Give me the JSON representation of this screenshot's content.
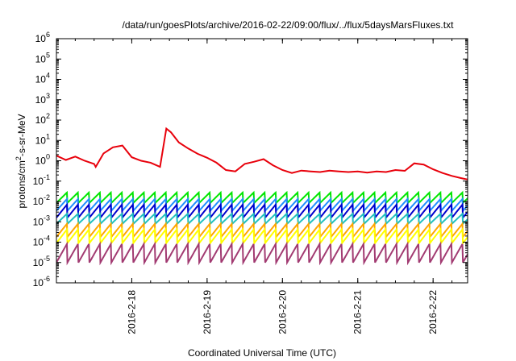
{
  "chart_data": {
    "type": "line",
    "title": "/data/run/goesPlots/archive/2016-02-22/09:00/flux/../flux/5daysMarsFluxes.txt",
    "xlabel": "Coordinated Universal Time (UTC)",
    "ylabel_parts": {
      "pre": "protons/cm",
      "sup": "2",
      "post": "-s-sr-MeV"
    },
    "yscale": "log",
    "ylim_exp": [
      -6,
      6
    ],
    "y_tick_exponents": [
      -6,
      -5,
      -4,
      -3,
      -2,
      -1,
      0,
      1,
      2,
      3,
      4,
      5,
      6
    ],
    "y_tick_base": "10",
    "xlim": [
      "2016-02-17T00:00",
      "2016-02-22T11:00"
    ],
    "x_ticks": [
      {
        "date": "2016-02-18T00:00",
        "label": "2016-2-18"
      },
      {
        "date": "2016-02-19T00:00",
        "label": "2016-2-19"
      },
      {
        "date": "2016-02-20T00:00",
        "label": "2016-2-20"
      },
      {
        "date": "2016-02-21T00:00",
        "label": "2016-2-21"
      },
      {
        "date": "2016-02-22T00:00",
        "label": "2016-2-22"
      }
    ],
    "grid": false,
    "legend": "none",
    "series": [
      {
        "color": "#e8000b",
        "x": [
          "2016-02-17T00:00",
          "2016-02-17T03:00",
          "2016-02-17T06:00",
          "2016-02-17T09:00",
          "2016-02-17T12:00",
          "2016-02-17T12:30",
          "2016-02-17T15:00",
          "2016-02-17T18:00",
          "2016-02-17T21:00",
          "2016-02-18T00:00",
          "2016-02-18T03:00",
          "2016-02-18T06:00",
          "2016-02-18T09:00",
          "2016-02-18T11:00",
          "2016-02-18T12:30",
          "2016-02-18T15:00",
          "2016-02-18T18:00",
          "2016-02-18T21:00",
          "2016-02-19T00:00",
          "2016-02-19T03:00",
          "2016-02-19T06:00",
          "2016-02-19T09:00",
          "2016-02-19T12:00",
          "2016-02-19T15:00",
          "2016-02-19T18:00",
          "2016-02-19T21:00",
          "2016-02-20T00:00",
          "2016-02-20T03:00",
          "2016-02-20T06:00",
          "2016-02-20T09:00",
          "2016-02-20T12:00",
          "2016-02-20T15:00",
          "2016-02-20T18:00",
          "2016-02-20T21:00",
          "2016-02-21T00:00",
          "2016-02-21T03:00",
          "2016-02-21T06:00",
          "2016-02-21T09:00",
          "2016-02-21T12:00",
          "2016-02-21T15:00",
          "2016-02-21T18:00",
          "2016-02-21T21:00",
          "2016-02-22T00:00",
          "2016-02-22T03:00",
          "2016-02-22T06:00",
          "2016-02-22T09:00",
          "2016-02-22T11:00"
        ],
        "y": [
          1.8,
          1.1,
          1.6,
          1.0,
          0.7,
          0.5,
          2.3,
          4.6,
          5.6,
          1.5,
          1.0,
          0.8,
          0.5,
          38,
          25,
          8,
          4,
          2.2,
          1.4,
          0.8,
          0.35,
          0.3,
          0.7,
          0.9,
          1.2,
          0.6,
          0.35,
          0.25,
          0.33,
          0.3,
          0.28,
          0.33,
          0.3,
          0.28,
          0.3,
          0.26,
          0.3,
          0.28,
          0.35,
          0.32,
          0.75,
          0.65,
          0.38,
          0.25,
          0.18,
          0.14,
          0.12
        ]
      },
      {
        "color": "#00e600",
        "y_range": [
          0.0085,
          0.029
        ]
      },
      {
        "color": "#1e8fff",
        "y_range": [
          0.0035,
          0.014
        ]
      },
      {
        "color": "#0000cc",
        "y_range": [
          0.0016,
          0.0075
        ]
      },
      {
        "color": "#20c0c0",
        "y_range": [
          0.0008,
          0.0026
        ]
      },
      {
        "color": "#ffa500",
        "y_range": [
          0.00018,
          0.00085
        ]
      },
      {
        "color": "#ffff00",
        "y_range": [
          9e-05,
          0.00045
        ]
      },
      {
        "color": "#a23b72",
        "y_range": [
          1e-05,
          9e-05
        ]
      }
    ],
    "oscillation_period_hours": 3.5
  }
}
